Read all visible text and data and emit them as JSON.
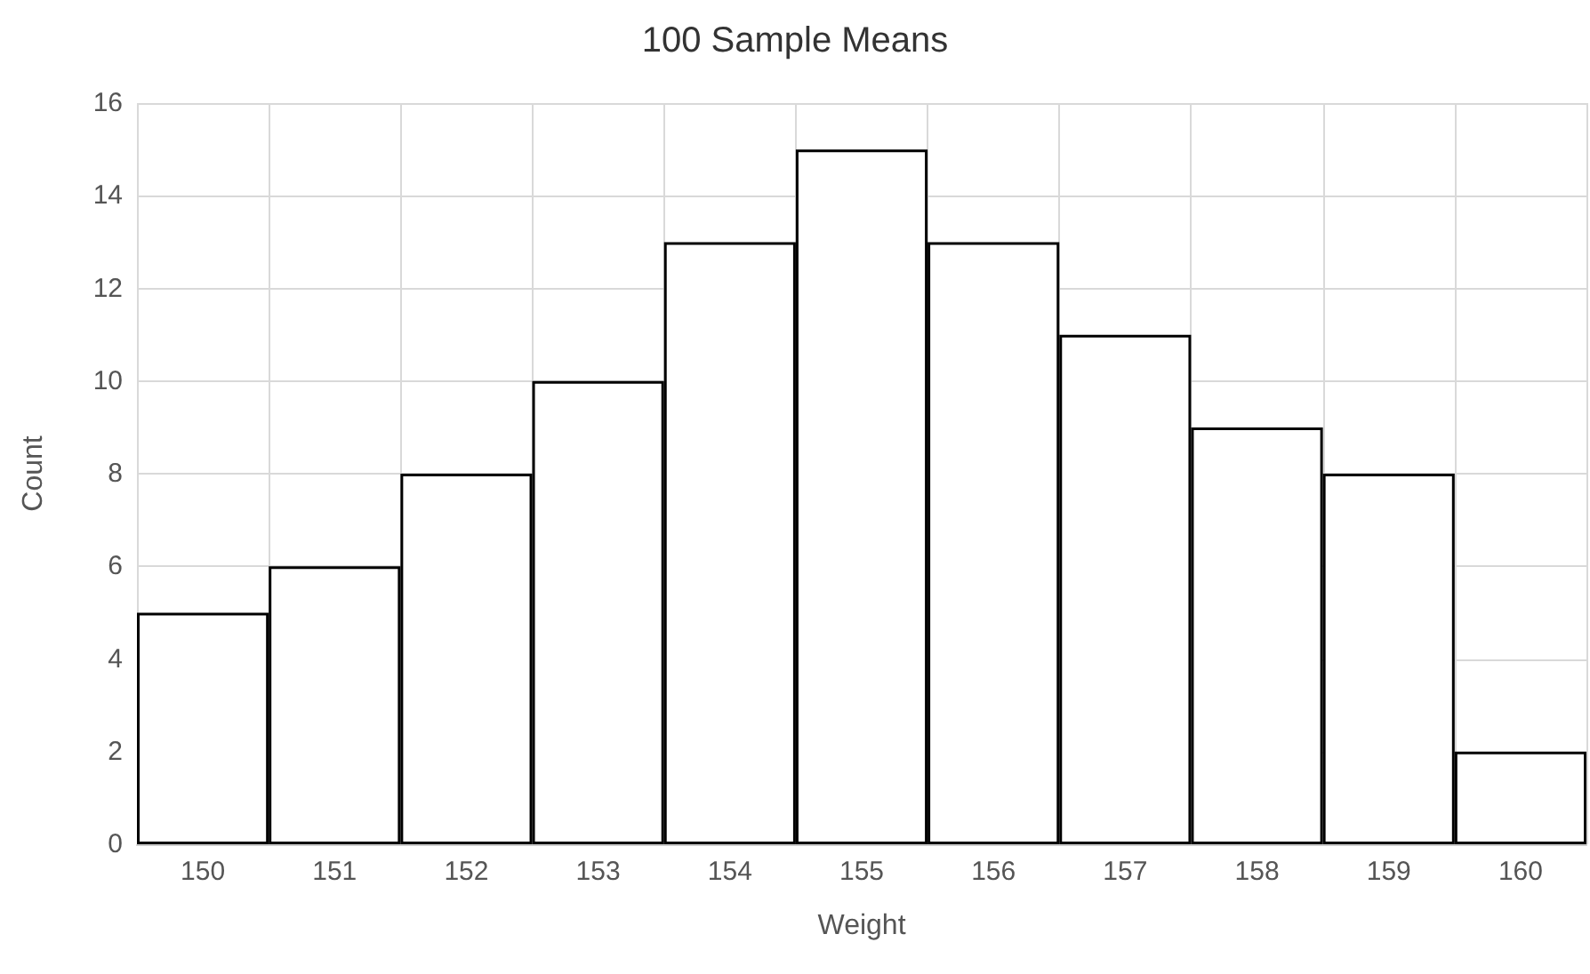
{
  "chart_data": {
    "type": "bar",
    "title": "100 Sample Means",
    "xlabel": "Weight",
    "ylabel": "Count",
    "categories": [
      "150",
      "151",
      "152",
      "153",
      "154",
      "155",
      "156",
      "157",
      "158",
      "159",
      "160"
    ],
    "values": [
      5,
      6,
      8,
      10,
      13,
      15,
      13,
      11,
      9,
      8,
      2
    ],
    "color": "#ffffff",
    "ylim": [
      0,
      16
    ],
    "yticks": [
      0,
      2,
      4,
      6,
      8,
      10,
      12,
      14,
      16
    ],
    "grid": true
  }
}
